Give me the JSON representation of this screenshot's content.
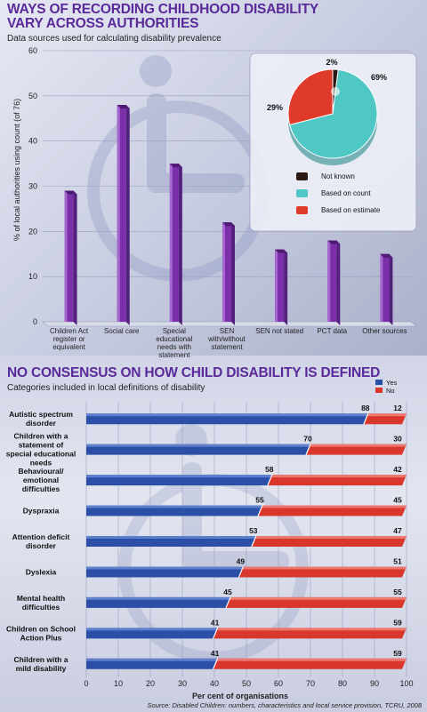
{
  "colors": {
    "title": "#5a2a9a",
    "bar_purple": "#7b2fa8",
    "yes_blue": "#2b4fa6",
    "no_red": "#d9362c",
    "pie_teal": "#4fc7c5",
    "pie_red": "#e03a2a",
    "pie_dark": "#2b1a14"
  },
  "charts": [
    {
      "title": "WAYS OF RECORDING CHILDHOOD DISABILITY VARY ACROSS AUTHORITIES",
      "subtitle": "Data sources used for calculating disability prevalence"
    },
    {
      "title": "NO CONSENSUS ON HOW CHILD DISABILITY IS DEFINED",
      "subtitle": "Categories included in local definitions of disability",
      "source": "Source: Disabled Children: numbers, characteristics and local service provision, TCRU, 2008"
    }
  ],
  "chart_data": [
    {
      "type": "bar",
      "title": "WAYS OF RECORDING CHILDHOOD DISABILITY VARY ACROSS AUTHORITIES",
      "subtitle": "Data sources used for calculating disability prevalence",
      "ylabel": "% of local authorities using count (of 76)",
      "ylim": [
        0,
        60
      ],
      "yticks": [
        0,
        10,
        20,
        30,
        40,
        50,
        60
      ],
      "grid": true,
      "categories": [
        "Children Act register or equivalent",
        "Social care",
        "Special educational needs with statement",
        "SEN with/without statement",
        "SEN not stated",
        "PCT data",
        "Other sources"
      ],
      "values": [
        29,
        48,
        35,
        22,
        16,
        18,
        15
      ]
    },
    {
      "type": "pie",
      "labels": [
        "Not known",
        "Based on count",
        "Based on estimate"
      ],
      "values": [
        2,
        69,
        29
      ],
      "value_labels": [
        "2%",
        "69%",
        "29%"
      ],
      "legend_position": "bottom-right"
    },
    {
      "type": "bar",
      "orientation": "horizontal",
      "stacked": true,
      "title": "NO CONSENSUS ON HOW CHILD DISABILITY IS DEFINED",
      "subtitle": "Categories included in local definitions of disability",
      "xlabel": "Per cent of organisations",
      "xlim": [
        0,
        100
      ],
      "xticks": [
        0,
        10,
        20,
        30,
        40,
        50,
        60,
        70,
        80,
        90,
        100
      ],
      "legend_position": "top-right",
      "categories": [
        "Autistic spectrum disorder",
        "Children with a statement of special educational needs",
        "Behavioural/ emotional difficulties",
        "Dyspraxia",
        "Attention deficit disorder",
        "Dyslexia",
        "Mental health difficulties",
        "Children on School Action Plus",
        "Children with a mild disability"
      ],
      "series": [
        {
          "name": "Yes",
          "values": [
            88,
            70,
            58,
            55,
            53,
            49,
            45,
            41,
            41
          ]
        },
        {
          "name": "No",
          "values": [
            12,
            30,
            42,
            45,
            47,
            51,
            55,
            59,
            59
          ]
        }
      ]
    }
  ]
}
